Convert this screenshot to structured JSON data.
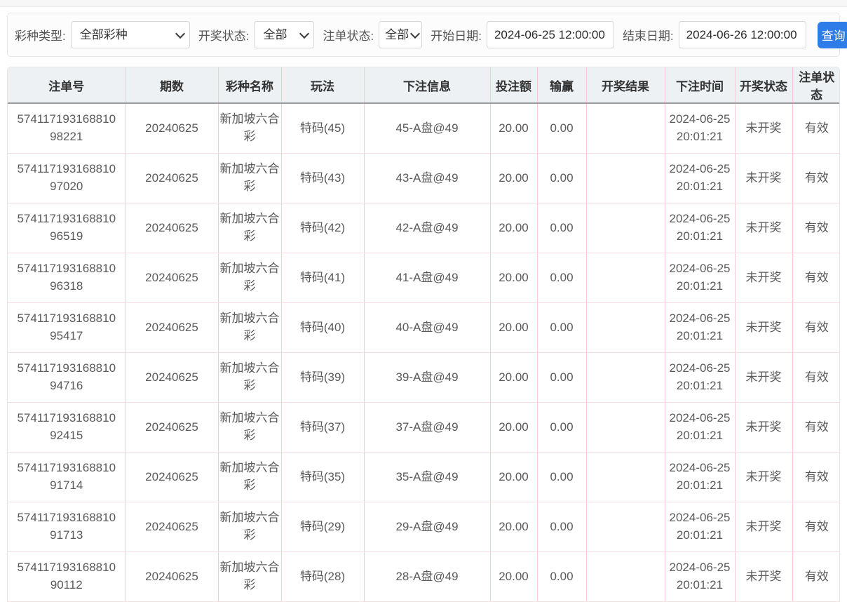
{
  "filters": {
    "lottery_type": {
      "label": "彩种类型:",
      "value": "全部彩种"
    },
    "draw_status": {
      "label": "开奖状态:",
      "value": "全部"
    },
    "bet_status": {
      "label": "注单状态:",
      "value": "全部"
    },
    "start_date": {
      "label": "开始日期:",
      "value": "2024-06-25 12:00:00"
    },
    "end_date": {
      "label": "结束日期:",
      "value": "2024-06-26 12:00:00"
    },
    "query_button": "查询"
  },
  "table": {
    "columns": [
      "注单号",
      "期数",
      "彩种名称",
      "玩法",
      "下注信息",
      "投注额",
      "输赢",
      "开奖结果",
      "下注时间",
      "开奖状态",
      "注单状态"
    ],
    "rows": [
      [
        "57411719316881098221",
        "20240625",
        "新加坡六合彩",
        "特码(45)",
        "45-A盘@49",
        "20.00",
        "0.00",
        "",
        "2024-06-25 20:01:21",
        "未开奖",
        "有效"
      ],
      [
        "57411719316881097020",
        "20240625",
        "新加坡六合彩",
        "特码(43)",
        "43-A盘@49",
        "20.00",
        "0.00",
        "",
        "2024-06-25 20:01:21",
        "未开奖",
        "有效"
      ],
      [
        "57411719316881096519",
        "20240625",
        "新加坡六合彩",
        "特码(42)",
        "42-A盘@49",
        "20.00",
        "0.00",
        "",
        "2024-06-25 20:01:21",
        "未开奖",
        "有效"
      ],
      [
        "57411719316881096318",
        "20240625",
        "新加坡六合彩",
        "特码(41)",
        "41-A盘@49",
        "20.00",
        "0.00",
        "",
        "2024-06-25 20:01:21",
        "未开奖",
        "有效"
      ],
      [
        "57411719316881095417",
        "20240625",
        "新加坡六合彩",
        "特码(40)",
        "40-A盘@49",
        "20.00",
        "0.00",
        "",
        "2024-06-25 20:01:21",
        "未开奖",
        "有效"
      ],
      [
        "57411719316881094716",
        "20240625",
        "新加坡六合彩",
        "特码(39)",
        "39-A盘@49",
        "20.00",
        "0.00",
        "",
        "2024-06-25 20:01:21",
        "未开奖",
        "有效"
      ],
      [
        "57411719316881092415",
        "20240625",
        "新加坡六合彩",
        "特码(37)",
        "37-A盘@49",
        "20.00",
        "0.00",
        "",
        "2024-06-25 20:01:21",
        "未开奖",
        "有效"
      ],
      [
        "57411719316881091714",
        "20240625",
        "新加坡六合彩",
        "特码(35)",
        "35-A盘@49",
        "20.00",
        "0.00",
        "",
        "2024-06-25 20:01:21",
        "未开奖",
        "有效"
      ],
      [
        "57411719316881091713",
        "20240625",
        "新加坡六合彩",
        "特码(29)",
        "29-A盘@49",
        "20.00",
        "0.00",
        "",
        "2024-06-25 20:01:21",
        "未开奖",
        "有效"
      ],
      [
        "57411719316881090112",
        "20240625",
        "新加坡六合彩",
        "特码(28)",
        "28-A盘@49",
        "20.00",
        "0.00",
        "",
        "2024-06-25 20:01:21",
        "未开奖",
        "有效"
      ]
    ]
  },
  "colors": {
    "accent_button": "#2e7ce8",
    "table_border_pink": "#f8c9cf",
    "row_divider_pink": "#fadde1",
    "header_bg": "#eef1f4",
    "header_divider": "#9c9c9c"
  }
}
